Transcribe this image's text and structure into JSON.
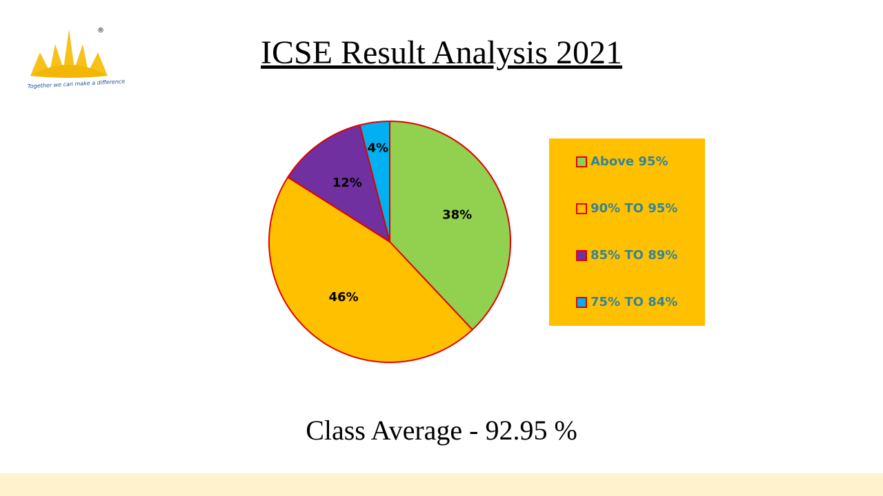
{
  "chart_data": {
    "type": "pie",
    "title": "ICSE Result Analysis 2021",
    "categories": [
      "Above 95%",
      "90% TO 95%",
      "85% TO 89%",
      "75% TO 84%"
    ],
    "values": [
      38,
      46,
      12,
      4
    ],
    "value_labels": [
      "38%",
      "46%",
      "12%",
      "4%"
    ],
    "colors": [
      "#92d050",
      "#ffc000",
      "#7030a0",
      "#00b0f0"
    ],
    "legend": "right",
    "annotation": "Class Average - 92.95 %"
  },
  "logo": {
    "mark": "®",
    "tagline": "Together we can make a difference"
  }
}
